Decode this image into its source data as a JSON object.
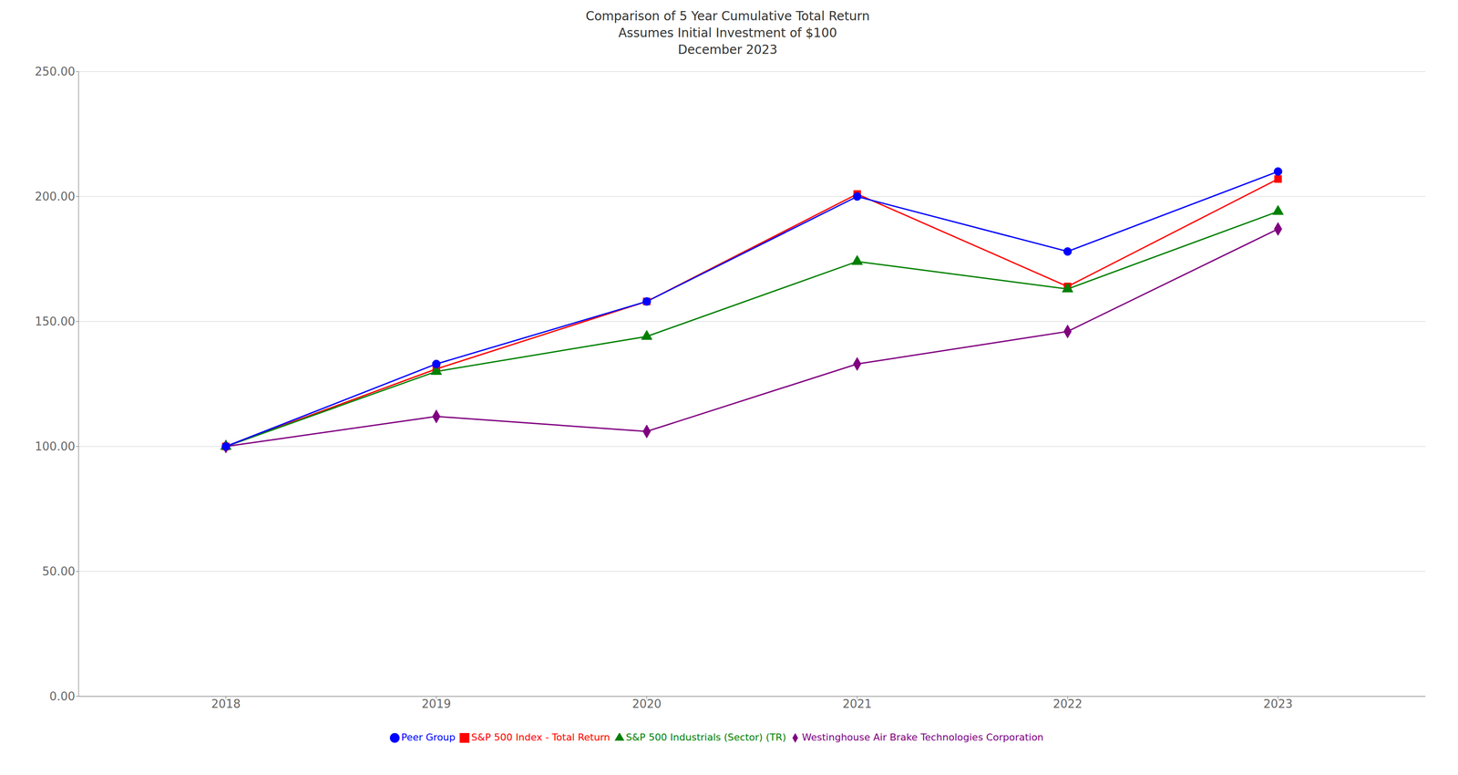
{
  "chart_data": {
    "type": "line",
    "title": "Comparison of 5 Year Cumulative Total Return\nAssumes Initial Investment of $100\nDecember 2023",
    "x": [
      2018,
      2019,
      2020,
      2021,
      2022,
      2023
    ],
    "series": [
      {
        "name": "Westinghouse Air Brake Technologies Corporation",
        "color": "#800080",
        "marker": "diamond",
        "values": [
          100.0,
          112.0,
          106.0,
          133.0,
          146.0,
          187.0
        ]
      },
      {
        "name": "S&P 500 Index - Total Return",
        "color": "#FF0000",
        "marker": "square",
        "values": [
          100.0,
          131.0,
          158.0,
          201.0,
          164.0,
          207.0
        ]
      },
      {
        "name": "S&P 500 Industrials (Sector) (TR)",
        "color": "#008000",
        "marker": "triangle",
        "values": [
          100.0,
          130.0,
          144.0,
          174.0,
          163.0,
          194.0
        ]
      },
      {
        "name": "Peer Group",
        "color": "#0000FF",
        "marker": "circle",
        "values": [
          100.0,
          133.0,
          158.0,
          200.0,
          178.0,
          210.0
        ]
      }
    ],
    "xlim": [
      2017.3,
      2023.7
    ],
    "xticks": [
      2018,
      2019,
      2020,
      2021,
      2022,
      2023
    ],
    "ylim": [
      0.0,
      250.0
    ],
    "yticks": [
      {
        "value": 0,
        "label": "0.00"
      },
      {
        "value": 50,
        "label": "50.00"
      },
      {
        "value": 100,
        "label": "100.00"
      },
      {
        "value": 150,
        "label": "150.00"
      },
      {
        "value": 200,
        "label": "200.00"
      },
      {
        "value": 250,
        "label": "250.00"
      }
    ],
    "grid": true,
    "legend": "bottom"
  }
}
